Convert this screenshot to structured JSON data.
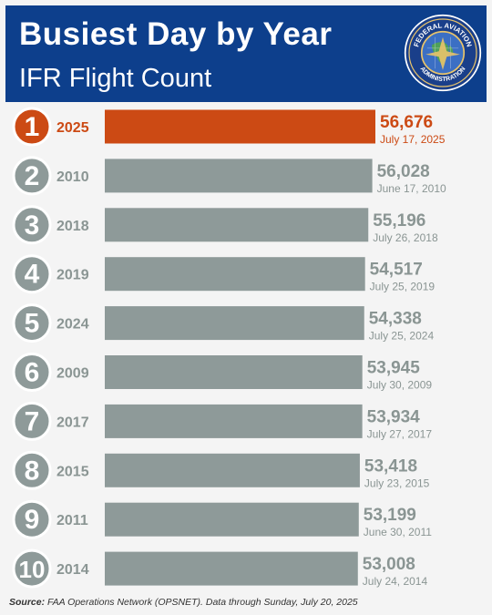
{
  "header": {
    "title": "Busiest Day by Year",
    "subtitle": "IFR Flight Count",
    "seal_text": "FEDERAL AVIATION ADMINISTRATION"
  },
  "colors": {
    "header_bg": "#0d3f8c",
    "highlight": "#cc4a14",
    "bar": "#8e9a99",
    "label": "#8a9593",
    "rank_circle": "#8e9a99"
  },
  "chart_data": {
    "type": "bar",
    "orientation": "horizontal",
    "title": "Busiest Day by Year",
    "subtitle": "IFR Flight Count",
    "categories": [
      "2025",
      "2010",
      "2018",
      "2019",
      "2024",
      "2009",
      "2017",
      "2015",
      "2011",
      "2014"
    ],
    "ranks": [
      "1",
      "2",
      "3",
      "4",
      "5",
      "6",
      "7",
      "8",
      "9",
      "10"
    ],
    "values": [
      56676,
      56028,
      55196,
      54517,
      54338,
      53945,
      53934,
      53418,
      53199,
      53008
    ],
    "value_labels": [
      "56,676",
      "56,028",
      "55,196",
      "54,517",
      "54,338",
      "53,945",
      "53,934",
      "53,418",
      "53,199",
      "53,008"
    ],
    "dates": [
      "July 17, 2025",
      "June 17, 2010",
      "July 26, 2018",
      "July 25, 2019",
      "July 25, 2024",
      "July 30, 2009",
      "July 27, 2017",
      "July 23, 2015",
      "June 30, 2011",
      "July 24, 2014"
    ],
    "highlight_index": 0,
    "xlim": [
      0,
      56676
    ],
    "grid": false,
    "legend": "none"
  },
  "footer": {
    "source_label": "Source:",
    "source_text": " FAA Operations Network (OPSNET). Data through Sunday, July 20, 2025"
  }
}
